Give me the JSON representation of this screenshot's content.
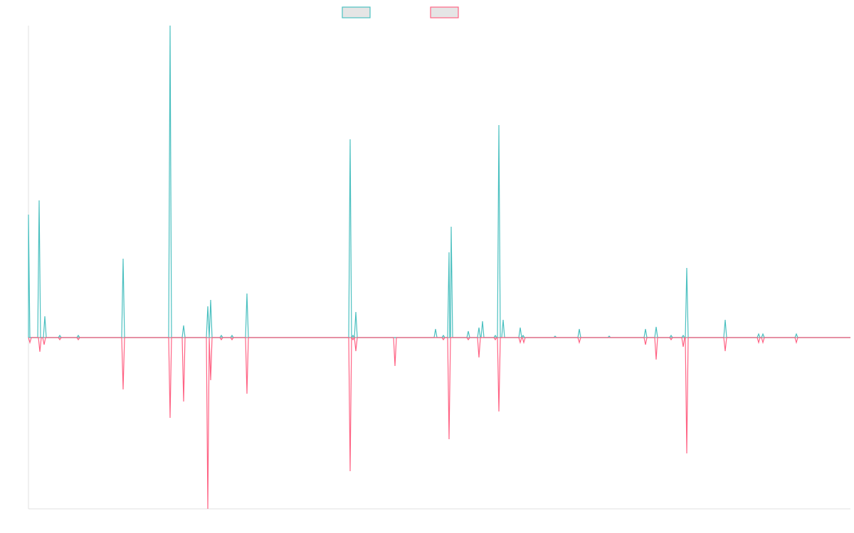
{
  "chart_data": {
    "type": "line",
    "title": "",
    "xlabel": "",
    "ylabel": "",
    "xlim": [
      0,
      1155
    ],
    "ylim": [
      -241,
      439
    ],
    "grid": false,
    "legend_placement": "top-center",
    "series": [
      {
        "name": "",
        "color": "#4bc0c0",
        "spikes": [
          [
            0,
            173
          ],
          [
            15,
            193
          ],
          [
            23,
            30
          ],
          [
            44,
            3
          ],
          [
            70,
            3
          ],
          [
            133,
            111
          ],
          [
            199,
            439
          ],
          [
            218,
            17
          ],
          [
            252,
            44
          ],
          [
            256,
            53
          ],
          [
            271,
            3
          ],
          [
            286,
            3
          ],
          [
            307,
            62
          ],
          [
            452,
            279
          ],
          [
            456,
            3
          ],
          [
            460,
            36
          ],
          [
            572,
            12
          ],
          [
            583,
            3
          ],
          [
            591,
            120
          ],
          [
            594,
            156
          ],
          [
            618,
            9
          ],
          [
            633,
            14
          ],
          [
            638,
            23
          ],
          [
            656,
            3
          ],
          [
            661,
            299
          ],
          [
            667,
            25
          ],
          [
            691,
            14
          ],
          [
            695,
            3
          ],
          [
            740,
            2
          ],
          [
            774,
            12
          ],
          [
            816,
            2
          ],
          [
            867,
            12
          ],
          [
            882,
            15
          ],
          [
            903,
            3
          ],
          [
            920,
            3
          ],
          [
            925,
            98
          ],
          [
            979,
            25
          ],
          [
            1026,
            5
          ],
          [
            1032,
            5
          ],
          [
            1079,
            5
          ]
        ]
      },
      {
        "name": "",
        "color": "#ff6384",
        "spikes": [
          [
            2,
            -7
          ],
          [
            16,
            -20
          ],
          [
            22,
            -10
          ],
          [
            44,
            -3
          ],
          [
            70,
            -3
          ],
          [
            133,
            -73
          ],
          [
            199,
            -113
          ],
          [
            218,
            -90
          ],
          [
            252,
            -241
          ],
          [
            256,
            -60
          ],
          [
            271,
            -3
          ],
          [
            286,
            -3
          ],
          [
            307,
            -79
          ],
          [
            452,
            -188
          ],
          [
            456,
            -3
          ],
          [
            460,
            -19
          ],
          [
            515,
            -40
          ],
          [
            583,
            -3
          ],
          [
            591,
            -143
          ],
          [
            618,
            -3
          ],
          [
            633,
            -28
          ],
          [
            656,
            -3
          ],
          [
            661,
            -104
          ],
          [
            691,
            -7
          ],
          [
            696,
            -7
          ],
          [
            774,
            -7
          ],
          [
            867,
            -10
          ],
          [
            882,
            -31
          ],
          [
            903,
            -3
          ],
          [
            920,
            -13
          ],
          [
            925,
            -163
          ],
          [
            979,
            -19
          ],
          [
            1026,
            -7
          ],
          [
            1032,
            -7
          ],
          [
            1079,
            -7
          ]
        ]
      }
    ]
  }
}
